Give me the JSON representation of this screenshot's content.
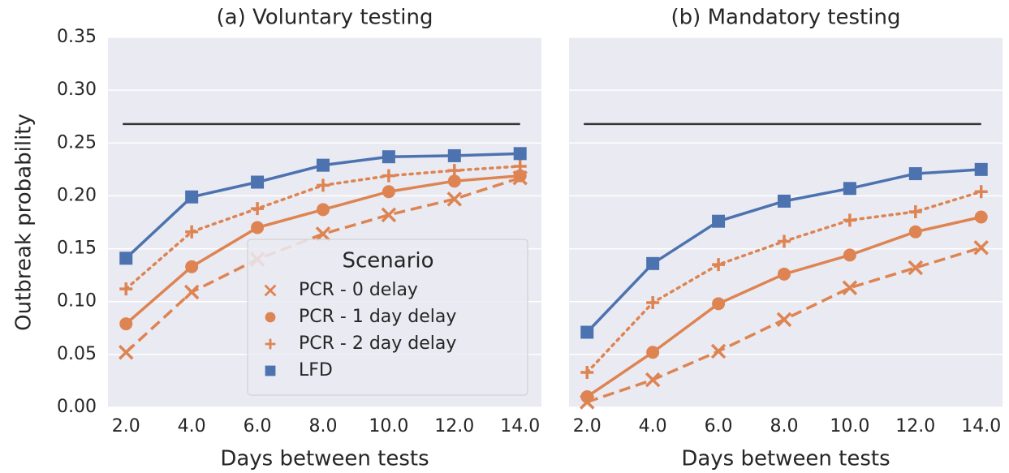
{
  "chart_data": [
    {
      "type": "line",
      "title": "(a) Voluntary testing",
      "xlabel": "Days between tests",
      "ylabel": "Outbreak probability",
      "x": [
        2,
        4,
        6,
        8,
        10,
        12,
        14
      ],
      "xlim": [
        1.45,
        14.65
      ],
      "xticks": [
        {
          "value": 2,
          "label": "2.0"
        },
        {
          "value": 4,
          "label": "4.0"
        },
        {
          "value": 6,
          "label": "6.0"
        },
        {
          "value": 8,
          "label": "8.0"
        },
        {
          "value": 10,
          "label": "10.0"
        },
        {
          "value": 12,
          "label": "12.0"
        },
        {
          "value": 14,
          "label": "14.0"
        }
      ],
      "ylim": [
        0,
        0.35
      ],
      "yticks": [
        {
          "value": 0,
          "label": "0.00"
        },
        {
          "value": 0.05,
          "label": "0.05"
        },
        {
          "value": 0.1,
          "label": "0.10"
        },
        {
          "value": 0.15,
          "label": "0.15"
        },
        {
          "value": 0.2,
          "label": "0.20"
        },
        {
          "value": 0.25,
          "label": "0.25"
        },
        {
          "value": 0.3,
          "label": "0.30"
        },
        {
          "value": 0.35,
          "label": "0.35"
        }
      ],
      "grid": "y",
      "hline": {
        "y": 0.268,
        "xmin": 1.9,
        "xmax": 14,
        "color": "#333333"
      },
      "legend": "lower right",
      "legend_title": "Scenario",
      "series": [
        {
          "name": "PCR - 0 delay",
          "color": "#dd8452",
          "marker": "x",
          "dash": "dashed",
          "values": [
            0.052,
            0.109,
            0.14,
            0.164,
            0.182,
            0.197,
            0.217
          ]
        },
        {
          "name": "PCR - 1 day delay",
          "color": "#dd8452",
          "marker": "circle",
          "dash": "solid",
          "values": [
            0.079,
            0.133,
            0.17,
            0.187,
            0.204,
            0.214,
            0.219
          ]
        },
        {
          "name": "PCR - 2 day delay",
          "color": "#dd8452",
          "marker": "plus",
          "dash": "dotted",
          "values": [
            0.112,
            0.166,
            0.188,
            0.21,
            0.219,
            0.224,
            0.228
          ]
        },
        {
          "name": "LFD",
          "color": "#4c72b0",
          "marker": "square",
          "dash": "solid",
          "values": [
            0.141,
            0.199,
            0.213,
            0.229,
            0.237,
            0.238,
            0.24
          ]
        }
      ]
    },
    {
      "type": "line",
      "title": "(b) Mandatory testing",
      "xlabel": "Days between tests",
      "x": [
        2,
        4,
        6,
        8,
        10,
        12,
        14
      ],
      "xlim": [
        1.45,
        14.65
      ],
      "xticks": [
        {
          "value": 2,
          "label": "2.0"
        },
        {
          "value": 4,
          "label": "4.0"
        },
        {
          "value": 6,
          "label": "6.0"
        },
        {
          "value": 8,
          "label": "8.0"
        },
        {
          "value": 10,
          "label": "10.0"
        },
        {
          "value": 12,
          "label": "12.0"
        },
        {
          "value": 14,
          "label": "14.0"
        }
      ],
      "ylim": [
        0,
        0.35
      ],
      "ygrid_values": [
        0,
        0.05,
        0.1,
        0.15,
        0.2,
        0.25,
        0.3,
        0.35
      ],
      "grid": "y",
      "hline": {
        "y": 0.268,
        "xmin": 1.9,
        "xmax": 14,
        "color": "#333333"
      },
      "series": [
        {
          "color": "#dd8452",
          "marker": "x",
          "dash": "dashed",
          "values": [
            0.005,
            0.026,
            0.053,
            0.083,
            0.113,
            0.132,
            0.151
          ]
        },
        {
          "color": "#dd8452",
          "marker": "circle",
          "dash": "solid",
          "values": [
            0.01,
            0.052,
            0.098,
            0.126,
            0.144,
            0.166,
            0.18
          ]
        },
        {
          "color": "#dd8452",
          "marker": "plus",
          "dash": "dotted",
          "values": [
            0.033,
            0.099,
            0.135,
            0.157,
            0.177,
            0.185,
            0.204
          ]
        },
        {
          "color": "#4c72b0",
          "marker": "square",
          "dash": "solid",
          "values": [
            0.071,
            0.136,
            0.176,
            0.195,
            0.207,
            0.221,
            0.225
          ]
        }
      ]
    }
  ]
}
